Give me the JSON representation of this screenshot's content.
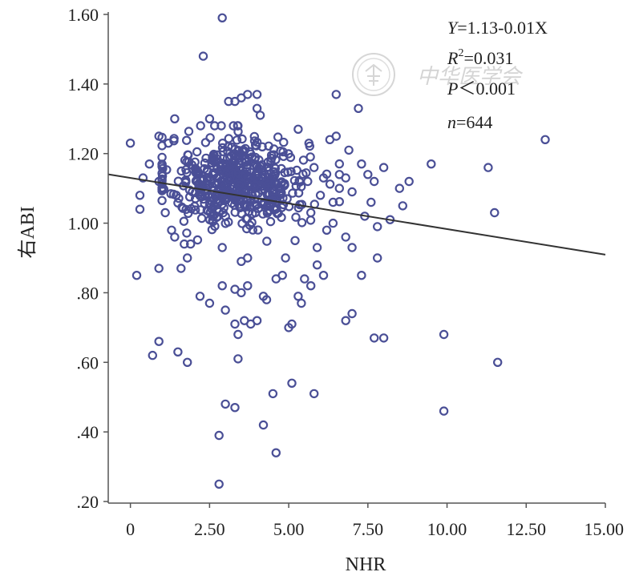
{
  "chart_data": {
    "type": "scatter",
    "xlabel": "NHR",
    "ylabel": "右ABI",
    "xlim": [
      -0.7,
      15.0
    ],
    "ylim": [
      0.2,
      1.6
    ],
    "xticks": [
      0,
      2.5,
      5.0,
      7.5,
      10.0,
      12.5,
      15.0
    ],
    "xtick_labels": [
      "0",
      "2.50",
      "5.00",
      "7.50",
      "10.00",
      "12.50",
      "15.00"
    ],
    "yticks": [
      0.2,
      0.4,
      0.6,
      0.8,
      1.0,
      1.2,
      1.4,
      1.6
    ],
    "ytick_labels": [
      ".20",
      ".40",
      ".60",
      ".80",
      "1.00",
      "1.20",
      "1.40",
      "1.60"
    ],
    "grid": false,
    "marker_color": "#4a4f96",
    "line_color": "#333333",
    "regression": {
      "intercept": 1.13,
      "slope": -0.0147
    },
    "annotations": {
      "equation_y": "Y",
      "equation_rest": "=1.13-0.01X",
      "r2_symbol": "R",
      "r2_sup": "2",
      "r2_value": "=0.031",
      "p_symbol": "P",
      "p_value": "＜0.001",
      "n_symbol": "n",
      "n_value": "=644"
    },
    "watermark": "中华医学会",
    "points": [
      [
        2.9,
        1.59
      ],
      [
        2.3,
        1.48
      ],
      [
        4.0,
        1.37
      ],
      [
        6.5,
        1.37
      ],
      [
        3.5,
        1.36
      ],
      [
        3.7,
        1.37
      ],
      [
        3.1,
        1.35
      ],
      [
        3.3,
        1.35
      ],
      [
        4.0,
        1.33
      ],
      [
        4.1,
        1.31
      ],
      [
        7.2,
        1.33
      ],
      [
        1.4,
        1.3
      ],
      [
        2.5,
        1.3
      ],
      [
        5.3,
        1.27
      ],
      [
        6.3,
        1.24
      ],
      [
        6.5,
        1.25
      ],
      [
        1.2,
        1.23
      ],
      [
        0.0,
        1.23
      ],
      [
        6.9,
        1.21
      ],
      [
        7.3,
        1.17
      ],
      [
        8.0,
        1.16
      ],
      [
        11.3,
        1.16
      ],
      [
        13.1,
        1.24
      ],
      [
        9.5,
        1.17
      ],
      [
        7.5,
        1.14
      ],
      [
        7.7,
        1.12
      ],
      [
        8.5,
        1.1
      ],
      [
        8.8,
        1.12
      ],
      [
        7.0,
        1.09
      ],
      [
        7.6,
        1.06
      ],
      [
        8.2,
        1.01
      ],
      [
        8.6,
        1.05
      ],
      [
        7.8,
        0.99
      ],
      [
        7.4,
        1.02
      ],
      [
        6.8,
        0.96
      ],
      [
        7.0,
        0.93
      ],
      [
        7.8,
        0.9
      ],
      [
        7.3,
        0.85
      ],
      [
        6.8,
        0.72
      ],
      [
        7.0,
        0.74
      ],
      [
        7.7,
        0.67
      ],
      [
        8.0,
        0.67
      ],
      [
        9.9,
        0.68
      ],
      [
        11.6,
        0.6
      ],
      [
        11.5,
        1.03
      ],
      [
        9.9,
        0.46
      ],
      [
        0.2,
        0.85
      ],
      [
        0.9,
        0.87
      ],
      [
        0.7,
        0.62
      ],
      [
        0.9,
        0.66
      ],
      [
        1.5,
        0.63
      ],
      [
        1.8,
        0.6
      ],
      [
        1.6,
        0.87
      ],
      [
        1.8,
        0.9
      ],
      [
        1.7,
        0.94
      ],
      [
        1.9,
        0.94
      ],
      [
        2.2,
        0.79
      ],
      [
        2.5,
        0.77
      ],
      [
        2.9,
        0.82
      ],
      [
        3.0,
        0.75
      ],
      [
        3.3,
        0.71
      ],
      [
        3.4,
        0.68
      ],
      [
        3.6,
        0.72
      ],
      [
        3.8,
        0.71
      ],
      [
        4.0,
        0.72
      ],
      [
        4.2,
        0.79
      ],
      [
        4.3,
        0.78
      ],
      [
        3.4,
        0.61
      ],
      [
        3.0,
        0.48
      ],
      [
        3.3,
        0.47
      ],
      [
        2.8,
        0.39
      ],
      [
        2.8,
        0.25
      ],
      [
        4.2,
        0.42
      ],
      [
        4.5,
        0.51
      ],
      [
        4.6,
        0.34
      ],
      [
        5.1,
        0.54
      ],
      [
        5.8,
        0.51
      ],
      [
        5.0,
        0.7
      ],
      [
        5.1,
        0.71
      ],
      [
        5.3,
        0.79
      ],
      [
        5.4,
        0.77
      ],
      [
        5.5,
        0.84
      ],
      [
        5.7,
        0.82
      ],
      [
        5.9,
        0.88
      ],
      [
        6.1,
        0.85
      ],
      [
        3.3,
        0.81
      ],
      [
        3.5,
        0.8
      ],
      [
        3.7,
        0.82
      ],
      [
        4.6,
        0.84
      ],
      [
        4.8,
        0.85
      ],
      [
        4.9,
        0.9
      ],
      [
        5.2,
        0.95
      ],
      [
        6.2,
        0.98
      ],
      [
        6.4,
        1.0
      ],
      [
        5.9,
        0.93
      ],
      [
        3.5,
        0.89
      ],
      [
        3.7,
        0.9
      ],
      [
        2.9,
        0.93
      ],
      [
        0.3,
        1.04
      ],
      [
        0.3,
        1.08
      ],
      [
        0.4,
        1.13
      ],
      [
        0.6,
        1.17
      ],
      [
        0.9,
        1.12
      ],
      [
        1.1,
        1.03
      ],
      [
        1.3,
        0.98
      ],
      [
        1.4,
        0.96
      ],
      [
        0.9,
        1.25
      ],
      [
        5.6,
        1.12
      ],
      [
        5.8,
        1.16
      ],
      [
        6.1,
        1.13
      ],
      [
        6.4,
        1.06
      ],
      [
        6.6,
        1.1
      ],
      [
        5.7,
        1.03
      ],
      [
        6.0,
        1.08
      ],
      [
        6.6,
        1.14
      ],
      [
        6.8,
        1.13
      ]
    ],
    "cluster": {
      "count": 526,
      "center_x": 3.4,
      "spread_x": 1.1,
      "center_y": 1.12,
      "spread_y": 0.065
    }
  }
}
